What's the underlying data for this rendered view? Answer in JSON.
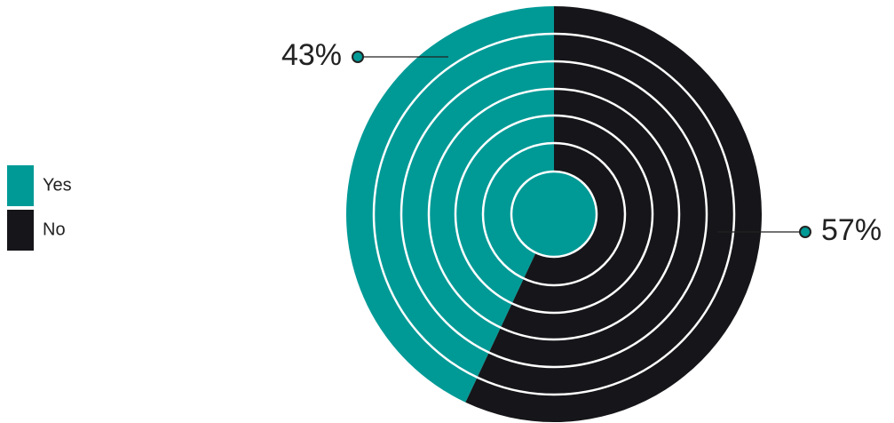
{
  "chart_data": {
    "type": "pie",
    "categories": [
      "Yes",
      "No"
    ],
    "values": [
      43,
      57
    ],
    "value_labels": [
      "43%",
      "57%"
    ],
    "colors": [
      "#009a96",
      "#16161a"
    ],
    "legend": "left"
  }
}
